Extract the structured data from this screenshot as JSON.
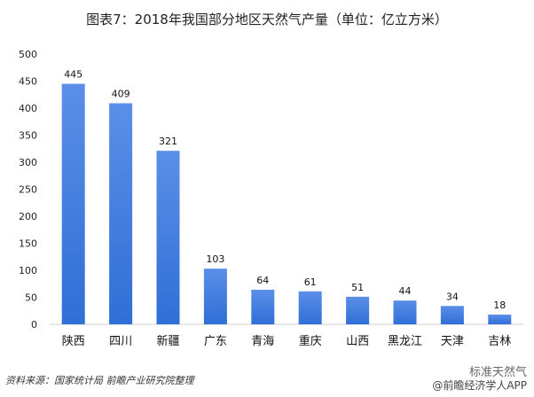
{
  "chart_data": {
    "type": "bar",
    "title": "图表7：2018年我国部分地区天然气产量（单位：亿立方米）",
    "categories": [
      "陕西",
      "四川",
      "新疆",
      "广东",
      "青海",
      "重庆",
      "山西",
      "黑龙江",
      "天津",
      "吉林"
    ],
    "values": [
      445,
      409,
      321,
      103,
      64,
      61,
      51,
      44,
      34,
      18
    ],
    "ylim": [
      0,
      500
    ],
    "yticks": [
      0,
      50,
      100,
      150,
      200,
      250,
      300,
      350,
      400,
      450,
      500
    ],
    "xlabel": "",
    "ylabel": "",
    "grid": false,
    "bar_color_top": "#5b8fe8",
    "bar_color_bottom": "#2f6fd6"
  },
  "footer": {
    "source": "资料来源：国家统计局 前瞻产业研究院整理",
    "watermark_top": "标准天然气",
    "watermark_bottom": "@前瞻经济学人APP"
  }
}
